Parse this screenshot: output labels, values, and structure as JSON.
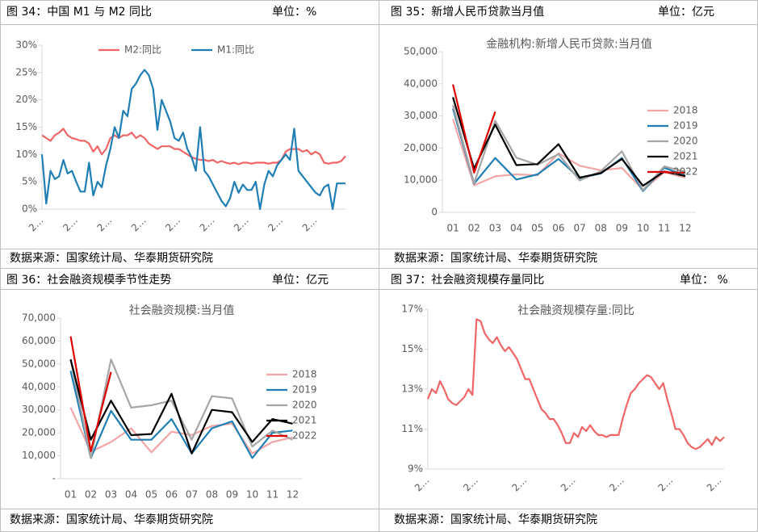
{
  "panels": [
    {
      "heading": "图 34：中国 M1 与 M2 同比",
      "unit": "单位：%",
      "source": "数据来源：国家统计局、华泰期货研究院"
    },
    {
      "heading": "图 35：新增人民币贷款当月值",
      "unit": "单位：亿元",
      "source": "数据来源：国家统计局、华泰期货研究院"
    },
    {
      "heading": "图 36：社会融资规模季节性走势",
      "unit": "单位：亿元",
      "source": "数据来源：国家统计局、华泰期货研究院"
    },
    {
      "heading": "图 37：社会融资规模存量同比",
      "unit": "单位： %",
      "source": "数据来源：国家统计局、华泰期货研究院"
    }
  ],
  "chart_data": [
    {
      "type": "line",
      "legend": "top",
      "categories": [
        "2…",
        null,
        null,
        null,
        null,
        null,
        null,
        null,
        "2…",
        null,
        null,
        null,
        null,
        null,
        null,
        null,
        "2…",
        null,
        null,
        null,
        null,
        null,
        null,
        null,
        "2…",
        null,
        null,
        null,
        null,
        null,
        null,
        null,
        "2…",
        null,
        null,
        null,
        null,
        null,
        null,
        null,
        "2…",
        null,
        null,
        null,
        null,
        null,
        null,
        null,
        "2…",
        null,
        null,
        null,
        null,
        null,
        null,
        null,
        "2…",
        null,
        null,
        null,
        null,
        null,
        null,
        null,
        "2…",
        null,
        null,
        null,
        null,
        null,
        null,
        null
      ],
      "ylim": [
        0,
        30
      ],
      "yticks": [
        {
          "value": 0,
          "label": "0%"
        },
        {
          "value": 5,
          "label": "5%"
        },
        {
          "value": 10,
          "label": "10%"
        },
        {
          "value": 15,
          "label": "15%"
        },
        {
          "value": 20,
          "label": "20%"
        },
        {
          "value": 25,
          "label": "25%"
        },
        {
          "value": 30,
          "label": "30%"
        }
      ],
      "series": [
        {
          "name": "M2:同比",
          "color": "#f06666",
          "values": [
            13.5,
            13,
            12.5,
            13.5,
            14,
            14.7,
            13.5,
            13,
            12.8,
            12.5,
            12.5,
            12,
            10.5,
            11.5,
            10,
            11,
            13,
            13.5,
            13,
            13.5,
            13.5,
            14,
            13,
            13.5,
            13,
            12,
            11.5,
            11,
            11.5,
            11.5,
            11.5,
            11,
            11,
            10.5,
            10,
            9.5,
            9.2,
            9,
            9,
            8.8,
            9,
            8.5,
            8.8,
            8.5,
            8.3,
            8.5,
            8.2,
            8.5,
            8.5,
            8.3,
            8.5,
            8.5,
            8.5,
            8.3,
            8.5,
            8.5,
            9,
            10.5,
            11,
            11,
            11,
            10.5,
            10.8,
            10,
            10.5,
            10,
            8.5,
            8.3,
            8.5,
            8.5,
            8.8,
            9.7
          ]
        },
        {
          "name": "M1:同比",
          "color": "#1f7fb4",
          "values": [
            10,
            1,
            7,
            5.5,
            6,
            9,
            6.5,
            7,
            5,
            3.2,
            3.2,
            8.5,
            2.5,
            5,
            4,
            8,
            11,
            15,
            13,
            18,
            17,
            22,
            23,
            24.5,
            25.5,
            24.5,
            22,
            14.5,
            20,
            18,
            16,
            13,
            12.5,
            14,
            11,
            9.5,
            7,
            15,
            7,
            6,
            4.5,
            3,
            1.5,
            0.5,
            2,
            5,
            3,
            4.5,
            3.5,
            3.5,
            5,
            0,
            4.5,
            7,
            6,
            8,
            9,
            10,
            9,
            14.7,
            7,
            6,
            5,
            4,
            3,
            2.5,
            4,
            4.5,
            0,
            4.7,
            4.7,
            4.7
          ]
        }
      ]
    },
    {
      "type": "line",
      "legend": "right",
      "title": "金融机构:新增人民币贷款:当月值",
      "categories": [
        "01",
        "02",
        "03",
        "04",
        "05",
        "06",
        "07",
        "08",
        "09",
        "10",
        "11",
        "12"
      ],
      "ylim": [
        0,
        50000
      ],
      "yticks": [
        0,
        {
          "value": 10000,
          "label": "10,000"
        },
        {
          "value": 20000,
          "label": "20,000"
        },
        {
          "value": 30000,
          "label": "30,000"
        },
        {
          "value": 40000,
          "label": "40,000"
        },
        {
          "value": 50000,
          "label": "50,000"
        }
      ],
      "series": [
        {
          "name": "2018",
          "color": "#f4a6a6",
          "values": [
            29000,
            8400,
            11200,
            11800,
            11500,
            18400,
            14500,
            13100,
            13800,
            6970,
            12500,
            10800
          ]
        },
        {
          "name": "2019",
          "color": "#1f7fb4",
          "values": [
            32300,
            8900,
            16900,
            10200,
            11800,
            16600,
            10600,
            12100,
            16900,
            6613,
            13900,
            11400
          ]
        },
        {
          "name": "2020",
          "color": "#a6a6a6",
          "values": [
            33400,
            9057,
            28500,
            17000,
            14800,
            18100,
            9927,
            12800,
            19000,
            6898,
            14300,
            12600
          ]
        },
        {
          "name": "2021",
          "color": "#000000",
          "values": [
            35800,
            13600,
            27300,
            14700,
            15000,
            21200,
            10800,
            12200,
            16600,
            8262,
            12700,
            11300
          ]
        },
        {
          "name": "2022",
          "color": "#e00000",
          "values": [
            39800,
            12300,
            31300,
            null,
            null,
            null,
            null,
            null,
            null,
            null,
            12500,
            12300
          ]
        }
      ]
    },
    {
      "type": "line",
      "legend": "right",
      "title": "社会融资规模:当月值",
      "categories": [
        "01",
        "02",
        "03",
        "04",
        "05",
        "06",
        "07",
        "08",
        "09",
        "10",
        "11",
        "12"
      ],
      "ylim": [
        0,
        70000
      ],
      "yticks": [
        {
          "value": 0,
          "label": "-"
        },
        {
          "value": 10000,
          "label": "10,000"
        },
        {
          "value": 20000,
          "label": "20,000"
        },
        {
          "value": 30000,
          "label": "30,000"
        },
        {
          "value": 40000,
          "label": "40,000"
        },
        {
          "value": 50000,
          "label": "50,000"
        },
        {
          "value": 60000,
          "label": "60,000"
        },
        {
          "value": 70000,
          "label": "70,000"
        }
      ],
      "series": [
        {
          "name": "2018",
          "color": "#f4a6a6",
          "values": [
            31000,
            11700,
            16000,
            22000,
            11500,
            20500,
            19000,
            23000,
            24000,
            11000,
            16000,
            18000
          ]
        },
        {
          "name": "2019",
          "color": "#1f7fb4",
          "values": [
            47000,
            9000,
            29600,
            17000,
            17000,
            26000,
            11000,
            22000,
            25000,
            9000,
            20000,
            21000
          ]
        },
        {
          "name": "2020",
          "color": "#a6a6a6",
          "values": [
            52000,
            9000,
            52000,
            31000,
            32000,
            34000,
            17000,
            36000,
            35000,
            14000,
            21000,
            17000
          ]
        },
        {
          "name": "2021",
          "color": "#000000",
          "values": [
            52000,
            17000,
            34000,
            19000,
            19500,
            37000,
            11000,
            30000,
            29000,
            16000,
            26000,
            24000
          ]
        },
        {
          "name": "2022",
          "color": "#e00000",
          "values": [
            62000,
            12000,
            46500,
            null,
            null,
            null,
            null,
            null,
            null,
            null,
            null,
            null
          ]
        }
      ]
    },
    {
      "type": "line",
      "title": "社会融资规模存量:同比",
      "categories": [
        "2…",
        null,
        null,
        null,
        null,
        null,
        null,
        null,
        null,
        null,
        null,
        null,
        "2…",
        null,
        null,
        null,
        null,
        null,
        null,
        null,
        null,
        null,
        null,
        null,
        "2…",
        null,
        null,
        null,
        null,
        null,
        null,
        null,
        null,
        null,
        null,
        null,
        "2…",
        null,
        null,
        null,
        null,
        null,
        null,
        null,
        null,
        null,
        null,
        null,
        "2…",
        null,
        null,
        null,
        null,
        null,
        null,
        null,
        null,
        null,
        null,
        null,
        "2…",
        null,
        null,
        null,
        null,
        null,
        null,
        null,
        null,
        null,
        null,
        null,
        "2…",
        null
      ],
      "ylim": [
        9,
        17
      ],
      "yticks": [
        {
          "value": 9,
          "label": "9%"
        },
        {
          "value": 11,
          "label": "11%"
        },
        {
          "value": 13,
          "label": "13%"
        },
        {
          "value": 15,
          "label": "15%"
        },
        {
          "value": 17,
          "label": "17%"
        }
      ],
      "series": [
        {
          "color": "#f06666",
          "values": [
            12.5,
            13,
            12.8,
            13.4,
            13,
            12.5,
            12.3,
            12.2,
            12.4,
            12.6,
            13,
            12.7,
            16.5,
            16.4,
            15.8,
            15.5,
            15.3,
            15.6,
            15.2,
            14.9,
            15.1,
            14.8,
            14.5,
            14,
            13.5,
            13.5,
            13,
            12.5,
            12,
            11.8,
            11.5,
            11.5,
            11.2,
            10.8,
            10.3,
            10.3,
            10.8,
            10.6,
            11.1,
            10.9,
            11.2,
            10.9,
            10.7,
            10.7,
            10.6,
            10.7,
            10.7,
            10.7,
            11.5,
            12.2,
            12.8,
            13,
            13.3,
            13.5,
            13.7,
            13.6,
            13.3,
            13,
            13.3,
            12.5,
            11.8,
            11,
            11,
            10.7,
            10.3,
            10.1,
            10,
            10.1,
            10.3,
            10.5,
            10.2,
            10.6,
            10.4,
            10.6
          ]
        }
      ]
    }
  ]
}
